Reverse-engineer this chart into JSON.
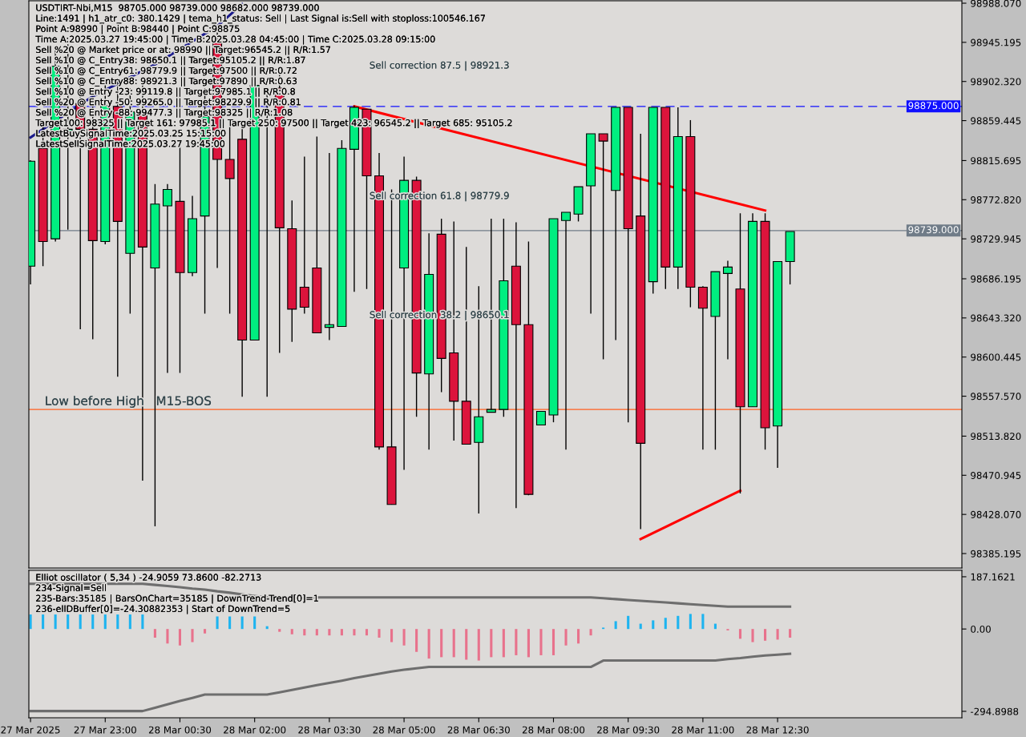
{
  "chart_data": [
    {
      "type": "candlestick",
      "title": "USDTIRT-Nbi,M15  98705.000 98739.000 98682.000 98739.000",
      "annotations": [
        "Line:1491 | h1_atr_c0: 380.1429 | tema_h1_status: Sell | Last Signal is:Sell with stoploss:100546.167",
        "Point A:98990 | Point B:98440 | Point C:98875",
        "Time A:2025.03.27 19:45:00 | Time B:2025.03.28 04:45:00 | Time C:2025.03.28 09:15:00",
        "Sell %20 @ Market price or at: 98990 || Target:96545.2 || R/R:1.57",
        "Sell %10 @ C_Entry38: 98650.1 || Target:95105.2 || R/R:1.87",
        "Sell %10 @ C_Entry61: 98779.9 || Target:97500 || R/R:0.72",
        "Sell %10 @ C_Entry88: 98921.3 || Target:97890 || R/R:0.63",
        "Sell %10 @ Entry -23: 99119.8 || Target:97985.1 || R/R:0.8",
        "Sell %20 @ Entry -50: 99265.0 || Target:98229.9 || R/R:0.81",
        "Sell %20 @ Entry -88: 99477.3 || Target:98325 || R/R:1.08",
        "Target100: 98325 || Target 161: 97985.1 || Target 250: 97500 || Target 423: 96545.2 || Target 685: 95105.2",
        "LatestBuySignalTime:2025.03.25 15:15:00",
        "LatestSellSignalTime:2025.03.27 19:45:00",
        "Sell correction 87.5 | 98921.3",
        "Sell correction 61.8 | 98779.9",
        "Sell correction 38.2 | 98650.1",
        "Low before High   M15-BOS"
      ],
      "x": [
        "2025-03-27T21:30",
        "2025-03-27T21:45",
        "2025-03-27T22:00",
        "2025-03-27T22:15",
        "2025-03-27T22:30",
        "2025-03-27T22:45",
        "2025-03-27T23:00",
        "2025-03-27T23:15",
        "2025-03-27T23:30",
        "2025-03-27T23:45",
        "2025-03-28T00:00",
        "2025-03-28T00:15",
        "2025-03-28T00:30",
        "2025-03-28T00:45",
        "2025-03-28T01:00",
        "2025-03-28T01:15",
        "2025-03-28T01:30",
        "2025-03-28T01:45",
        "2025-03-28T02:00",
        "2025-03-28T02:15",
        "2025-03-28T02:30",
        "2025-03-28T02:45",
        "2025-03-28T03:00",
        "2025-03-28T03:15",
        "2025-03-28T03:30",
        "2025-03-28T03:45",
        "2025-03-28T04:00",
        "2025-03-28T04:15",
        "2025-03-28T04:30",
        "2025-03-28T04:45",
        "2025-03-28T05:00",
        "2025-03-28T05:15",
        "2025-03-28T05:30",
        "2025-03-28T05:45",
        "2025-03-28T06:00",
        "2025-03-28T06:15",
        "2025-03-28T06:30",
        "2025-03-28T06:45",
        "2025-03-28T07:00",
        "2025-03-28T07:15",
        "2025-03-28T07:30",
        "2025-03-28T07:45",
        "2025-03-28T08:00",
        "2025-03-28T08:15",
        "2025-03-28T08:30",
        "2025-03-28T08:45",
        "2025-03-28T09:00",
        "2025-03-28T09:15",
        "2025-03-28T09:30",
        "2025-03-28T09:45",
        "2025-03-28T10:00",
        "2025-03-28T10:15",
        "2025-03-28T10:30",
        "2025-03-28T10:45",
        "2025-03-28T11:00",
        "2025-03-28T11:15",
        "2025-03-28T11:30",
        "2025-03-28T11:45",
        "2025-03-28T12:00",
        "2025-03-28T12:15",
        "2025-03-28T12:30",
        "2025-03-28T12:45"
      ],
      "ohlc": [
        [
          98700,
          98816,
          98680,
          98815
        ],
        [
          98829,
          98860,
          98700,
          98727
        ],
        [
          98730,
          98939,
          98727,
          98919
        ],
        [
          98848,
          98943,
          98740,
          98850
        ],
        [
          98878,
          98904,
          98631,
          98850
        ],
        [
          98850,
          98886,
          98620,
          98728
        ],
        [
          98727,
          98904,
          98724,
          98876
        ],
        [
          98875,
          98904,
          98579,
          98749
        ],
        [
          98714,
          98895,
          98648,
          98869
        ],
        [
          98869,
          98904,
          98465,
          98721
        ],
        [
          98698,
          98790,
          98415,
          98768
        ],
        [
          98766,
          98790,
          98583,
          98784
        ],
        [
          98771,
          98838,
          98583,
          98693
        ],
        [
          98693,
          98777,
          98689,
          98752
        ],
        [
          98755,
          98895,
          98648,
          98864
        ],
        [
          98946,
          98956,
          98698,
          98817
        ],
        [
          98817,
          98860,
          98648,
          98796
        ],
        [
          98839,
          98860,
          98557,
          98619
        ],
        [
          98619,
          98913,
          98619,
          98898
        ],
        [
          98869,
          98895,
          98557,
          98867
        ],
        [
          98895,
          98913,
          98605,
          98742
        ],
        [
          98741,
          98772,
          98617,
          98653
        ],
        [
          98677,
          98820,
          98648,
          98655
        ],
        [
          98698,
          98842,
          98627,
          98627
        ],
        [
          98633,
          98824,
          98619,
          98636
        ],
        [
          98634,
          98838,
          98634,
          98829
        ],
        [
          98828,
          98876,
          98672,
          98874
        ],
        [
          98872,
          98872,
          98675,
          98799
        ],
        [
          98799,
          98824,
          98499,
          98502
        ],
        [
          98502,
          98784,
          98439,
          98439
        ],
        [
          98698,
          98820,
          98477,
          98794
        ],
        [
          98794,
          98798,
          98535,
          98583
        ],
        [
          98582,
          98736,
          98499,
          98691
        ],
        [
          98735,
          98752,
          98562,
          98599
        ],
        [
          98605,
          98749,
          98509,
          98552
        ],
        [
          98552,
          98721,
          98505,
          98505
        ],
        [
          98507,
          98678,
          98429,
          98535
        ],
        [
          98540,
          98752,
          98540,
          98543
        ],
        [
          98543,
          98752,
          98535,
          98684
        ],
        [
          98700,
          98748,
          98435,
          98636
        ],
        [
          98636,
          98727,
          98449,
          98450
        ],
        [
          98526,
          98541,
          98526,
          98541
        ],
        [
          98537,
          98752,
          98529,
          98752
        ],
        [
          98750,
          98759,
          98499,
          98759
        ],
        [
          98757,
          98787,
          98749,
          98787
        ],
        [
          98788,
          98845,
          98648,
          98845
        ],
        [
          98845,
          98845,
          98598,
          98837
        ],
        [
          98783,
          98874,
          98619,
          98874
        ],
        [
          98874,
          98874,
          98529,
          98741
        ],
        [
          98755,
          98845,
          98412,
          98506
        ],
        [
          98683,
          98874,
          98670,
          98874
        ],
        [
          98874,
          98874,
          98675,
          98699
        ],
        [
          98699,
          98874,
          98675,
          98842
        ],
        [
          98842,
          98860,
          98655,
          98677
        ],
        [
          98677,
          98678,
          98499,
          98654
        ],
        [
          98645,
          98694,
          98499,
          98694
        ],
        [
          98692,
          98706,
          98598,
          98699
        ],
        [
          98675,
          98758,
          98451,
          98546
        ],
        [
          98546,
          98758,
          98546,
          98749
        ],
        [
          98749,
          98758,
          98499,
          98523
        ],
        [
          98525,
          98705,
          98479,
          98705
        ],
        [
          98705,
          98738,
          98680,
          98738
        ]
      ],
      "colors": [
        "#00ee80",
        "#dc143c",
        "#00ee80",
        "#00ee80",
        "#dc143c",
        "#dc143c",
        "#00ee80",
        "#dc143c",
        "#00ee80",
        "#dc143c",
        "#00ee80",
        "#00ee80",
        "#dc143c",
        "#00ee80",
        "#00ee80",
        "#dc143c",
        "#dc143c",
        "#dc143c",
        "#00ee80",
        "#dc143c",
        "#dc143c",
        "#dc143c",
        "#dc143c",
        "#dc143c",
        "#00ee80",
        "#00ee80",
        "#00ee80",
        "#dc143c",
        "#dc143c",
        "#dc143c",
        "#00ee80",
        "#dc143c",
        "#00ee80",
        "#dc143c",
        "#dc143c",
        "#dc143c",
        "#00ee80",
        "#00ee80",
        "#00ee80",
        "#dc143c",
        "#dc143c",
        "#00ee80",
        "#00ee80",
        "#00ee80",
        "#00ee80",
        "#00ee80",
        "#dc143c",
        "#00ee80",
        "#dc143c",
        "#dc143c",
        "#00ee80",
        "#dc143c",
        "#00ee80",
        "#dc143c",
        "#dc143c",
        "#00ee80",
        "#00ee80",
        "#dc143c",
        "#00ee80",
        "#dc143c",
        "#00ee80",
        "#00ee80"
      ],
      "series": [
        {
          "type": "line",
          "color": "#1a1a8c",
          "x": [
            "2025-03-27T21:30",
            "2025-03-27T22:45",
            "2025-03-28T00:00",
            "2025-03-28T01:15",
            "2025-03-28T01:45"
          ],
          "values": [
            98841,
            98886,
            98921,
            98963,
            98987
          ]
        },
        {
          "type": "line",
          "color": "#ff0000",
          "x": [
            "2025-03-28T04:00",
            "2025-03-28T12:15"
          ],
          "values": [
            98875,
            98761
          ]
        },
        {
          "type": "line",
          "color": "#ff0000",
          "x": [
            "2025-03-28T09:45",
            "2025-03-28T11:45"
          ],
          "values": [
            98401,
            98454
          ]
        }
      ],
      "ref_lines": [
        {
          "axis": "y",
          "value": 98875,
          "label": "98875.000",
          "color": "#1010ff",
          "line_style": "dashed"
        },
        {
          "axis": "y",
          "value": 98739,
          "label": "98739.000",
          "color": "#707c88",
          "line_style": "solid"
        },
        {
          "axis": "y",
          "value": 98543,
          "label": null,
          "color": "#ff6020",
          "line_style": "solid"
        }
      ],
      "xlim": [
        "2025-03-27T21:28",
        "2025-03-28T16:12"
      ],
      "ylim": [
        98369.4,
        98990.7
      ],
      "yticks": [
        {
          "value": 98988.07,
          "label": "98988.070"
        },
        {
          "value": 98945.195,
          "label": "98945.195"
        },
        {
          "value": 98902.32,
          "label": "98902.320"
        },
        {
          "value": 98859.445,
          "label": "98859.445"
        },
        {
          "value": 98815.695,
          "label": "98815.695"
        },
        {
          "value": 98772.82,
          "label": "98772.820"
        },
        {
          "value": 98729.945,
          "label": "98729.945"
        },
        {
          "value": 98686.195,
          "label": "98686.195"
        },
        {
          "value": 98643.32,
          "label": "98643.320"
        },
        {
          "value": 98600.445,
          "label": "98600.445"
        },
        {
          "value": 98557.57,
          "label": "98557.570"
        },
        {
          "value": 98513.82,
          "label": "98513.820"
        },
        {
          "value": 98470.945,
          "label": "98470.945"
        },
        {
          "value": 98428.07,
          "label": "98428.070"
        },
        {
          "value": 98385.195,
          "label": "98385.195"
        }
      ],
      "tick_labels": "y"
    },
    {
      "type": "bar",
      "annotations": [
        "Elliot oscillator ( 5,34 ) -24.9059 73.8600 -82.2713",
        "234-Signal=Sell",
        "235-Bars:35185 | BarsOnChart=35185 | DownTrend-Trend[0]=1",
        "236-ellDBuffer[0]=-24.30882353 | Start of DownTrend=5"
      ],
      "x": [
        "2025-03-27T21:30",
        "2025-03-27T21:45",
        "2025-03-27T22:00",
        "2025-03-27T22:15",
        "2025-03-27T22:30",
        "2025-03-27T22:45",
        "2025-03-27T23:00",
        "2025-03-27T23:15",
        "2025-03-27T23:30",
        "2025-03-27T23:45",
        "2025-03-28T00:00",
        "2025-03-28T00:15",
        "2025-03-28T00:30",
        "2025-03-28T00:45",
        "2025-03-28T01:00",
        "2025-03-28T01:15",
        "2025-03-28T01:30",
        "2025-03-28T01:45",
        "2025-03-28T02:00",
        "2025-03-28T02:15",
        "2025-03-28T02:30",
        "2025-03-28T02:45",
        "2025-03-28T03:00",
        "2025-03-28T03:15",
        "2025-03-28T03:30",
        "2025-03-28T03:45",
        "2025-03-28T04:00",
        "2025-03-28T04:15",
        "2025-03-28T04:30",
        "2025-03-28T04:45",
        "2025-03-28T05:00",
        "2025-03-28T05:15",
        "2025-03-28T05:30",
        "2025-03-28T05:45",
        "2025-03-28T06:00",
        "2025-03-28T06:15",
        "2025-03-28T06:30",
        "2025-03-28T06:45",
        "2025-03-28T07:00",
        "2025-03-28T07:15",
        "2025-03-28T07:30",
        "2025-03-28T07:45",
        "2025-03-28T08:00",
        "2025-03-28T08:15",
        "2025-03-28T08:30",
        "2025-03-28T08:45",
        "2025-03-28T09:00",
        "2025-03-28T09:15",
        "2025-03-28T09:30",
        "2025-03-28T09:45",
        "2025-03-28T10:00",
        "2025-03-28T10:15",
        "2025-03-28T10:30",
        "2025-03-28T10:45",
        "2025-03-28T11:00",
        "2025-03-28T11:15",
        "2025-03-28T11:30",
        "2025-03-28T11:45",
        "2025-03-28T12:00",
        "2025-03-28T12:15",
        "2025-03-28T12:30",
        "2025-03-28T12:45"
      ],
      "series": [
        {
          "type": "bar",
          "values": [
            52,
            52,
            52,
            52,
            52,
            52,
            52,
            52,
            52,
            52,
            -31,
            -52,
            -59,
            -47,
            -16,
            45,
            45,
            45,
            45,
            10,
            -10,
            -19,
            -23,
            -23,
            -23,
            -23,
            -23,
            -23,
            -31,
            -47,
            -59,
            -82,
            -106,
            -101,
            -101,
            -110,
            -113,
            -101,
            -101,
            -94,
            -101,
            -94,
            -94,
            -59,
            -52,
            -23,
            5,
            28,
            47,
            19,
            31,
            40,
            47,
            54,
            54,
            19,
            -5,
            -35,
            -47,
            -42,
            -38,
            -31
          ],
          "colors": [
            "#1eb4f0",
            "#1eb4f0",
            "#1eb4f0",
            "#1eb4f0",
            "#1eb4f0",
            "#1eb4f0",
            "#1eb4f0",
            "#1eb4f0",
            "#1eb4f0",
            "#1eb4f0",
            "#e8728c",
            "#e8728c",
            "#e8728c",
            "#e8728c",
            "#e8728c",
            "#1eb4f0",
            "#1eb4f0",
            "#1eb4f0",
            "#1eb4f0",
            "#1eb4f0",
            "#e8728c",
            "#e8728c",
            "#e8728c",
            "#e8728c",
            "#e8728c",
            "#e8728c",
            "#e8728c",
            "#e8728c",
            "#e8728c",
            "#e8728c",
            "#e8728c",
            "#e8728c",
            "#e8728c",
            "#e8728c",
            "#e8728c",
            "#e8728c",
            "#e8728c",
            "#e8728c",
            "#e8728c",
            "#e8728c",
            "#e8728c",
            "#e8728c",
            "#e8728c",
            "#e8728c",
            "#e8728c",
            "#e8728c",
            "#1eb4f0",
            "#1eb4f0",
            "#1eb4f0",
            "#1eb4f0",
            "#1eb4f0",
            "#1eb4f0",
            "#1eb4f0",
            "#1eb4f0",
            "#1eb4f0",
            "#1eb4f0",
            "#e8728c",
            "#e8728c",
            "#e8728c",
            "#e8728c",
            "#e8728c",
            "#e8728c"
          ]
        },
        {
          "type": "line",
          "color": "#6e6e6e",
          "values": [
            162,
            162,
            162,
            162,
            162,
            162,
            162,
            162,
            162,
            162,
            158,
            154,
            150,
            145,
            141,
            135,
            130,
            124,
            118,
            113,
            113,
            113,
            113,
            113,
            113,
            113,
            113,
            113,
            113,
            113,
            113,
            113,
            113,
            113,
            113,
            113,
            113,
            113,
            113,
            113,
            113,
            113,
            113,
            113,
            113,
            113,
            110,
            107,
            104,
            101,
            98,
            95,
            92,
            89,
            86,
            83,
            80,
            80,
            80,
            80,
            80,
            80
          ]
        },
        {
          "type": "line",
          "color": "#6e6e6e",
          "values": [
            -294,
            -294,
            -294,
            -294,
            -294,
            -294,
            -294,
            -294,
            -294,
            -294,
            -282,
            -270,
            -258,
            -247,
            -235,
            -235,
            -235,
            -235,
            -235,
            -235,
            -227,
            -218,
            -210,
            -201,
            -193,
            -185,
            -176,
            -168,
            -160,
            -152,
            -146,
            -141,
            -136,
            -136,
            -136,
            -136,
            -136,
            -136,
            -136,
            -136,
            -136,
            -136,
            -136,
            -136,
            -136,
            -136,
            -113,
            -113,
            -113,
            -113,
            -113,
            -113,
            -113,
            -113,
            -113,
            -113,
            -108,
            -104,
            -99,
            -95,
            -92,
            -89
          ]
        }
      ],
      "xlim": [
        "2025-03-27T21:28",
        "2025-03-28T16:12"
      ],
      "xticks": [
        {
          "value": "2025-03-27T21:30",
          "label": "27 Mar 2025"
        },
        {
          "value": "2025-03-27T23:00",
          "label": "27 Mar 23:00"
        },
        {
          "value": "2025-03-28T00:30",
          "label": "28 Mar 00:30"
        },
        {
          "value": "2025-03-28T02:00",
          "label": "28 Mar 02:00"
        },
        {
          "value": "2025-03-28T03:30",
          "label": "28 Mar 03:30"
        },
        {
          "value": "2025-03-28T05:00",
          "label": "28 Mar 05:00"
        },
        {
          "value": "2025-03-28T06:30",
          "label": "28 Mar 06:30"
        },
        {
          "value": "2025-03-28T08:00",
          "label": "28 Mar 08:00"
        },
        {
          "value": "2025-03-28T09:30",
          "label": "28 Mar 09:30"
        },
        {
          "value": "2025-03-28T11:00",
          "label": "28 Mar 11:00"
        },
        {
          "value": "2025-03-28T12:30",
          "label": "28 Mar 12:30"
        }
      ],
      "ylim": [
        -318,
        210
      ],
      "yticks": [
        {
          "value": 187.1621,
          "label": "187.1621"
        },
        {
          "value": 0,
          "label": "0.00"
        },
        {
          "value": -294.8988,
          "label": "-294.8988"
        }
      ]
    }
  ]
}
